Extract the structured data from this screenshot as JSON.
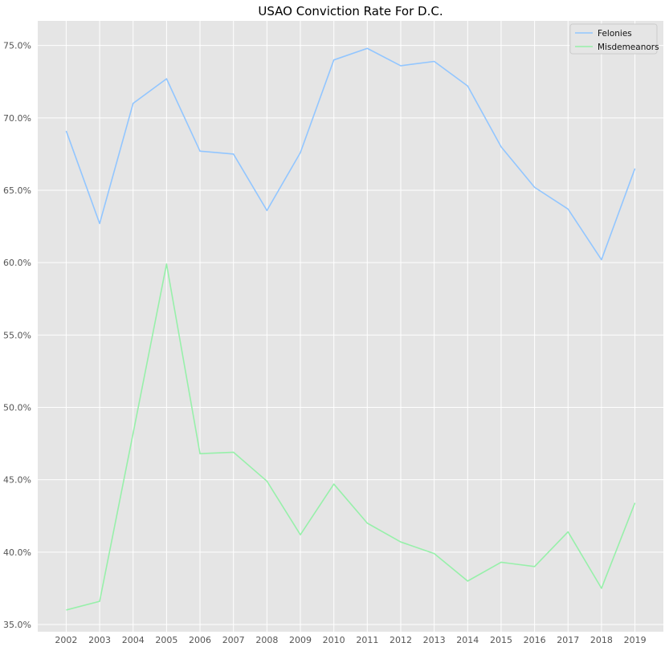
{
  "chart_data": {
    "type": "line",
    "title": "USAO Conviction Rate For D.C.",
    "xlabel": "",
    "ylabel": "",
    "x": [
      2002,
      2003,
      2004,
      2005,
      2006,
      2007,
      2008,
      2009,
      2010,
      2011,
      2012,
      2013,
      2014,
      2015,
      2016,
      2017,
      2018,
      2019
    ],
    "x_tick_labels": [
      "2002",
      "2003",
      "2004",
      "2005",
      "2006",
      "2007",
      "2008",
      "2009",
      "2010",
      "2011",
      "2012",
      "2013",
      "2014",
      "2015",
      "2016",
      "2017",
      "2018",
      "2019"
    ],
    "ylim": [
      34.5,
      76.7
    ],
    "y_ticks": [
      35,
      40,
      45,
      50,
      55,
      60,
      65,
      70,
      75
    ],
    "y_tick_labels": [
      "35.0%",
      "40.0%",
      "45.0%",
      "50.0%",
      "55.0%",
      "60.0%",
      "65.0%",
      "70.0%",
      "75.0%"
    ],
    "grid": true,
    "background_color": "#e5e5e5",
    "grid_color": "#ffffff",
    "legend_position": "top-right",
    "series": [
      {
        "name": "Felonies",
        "color": "#92c6ff",
        "values": [
          69.1,
          62.7,
          71.0,
          72.7,
          67.7,
          67.5,
          63.6,
          67.6,
          74.0,
          74.8,
          73.6,
          73.9,
          72.2,
          68.0,
          65.2,
          63.7,
          60.2,
          66.5
        ]
      },
      {
        "name": "Misdemeanors",
        "color": "#97f0aa",
        "values": [
          36.0,
          36.6,
          48.2,
          59.9,
          46.8,
          46.9,
          44.9,
          41.2,
          44.7,
          42.0,
          40.7,
          39.9,
          38.0,
          39.3,
          39.0,
          41.4,
          37.5,
          43.4
        ]
      }
    ]
  }
}
